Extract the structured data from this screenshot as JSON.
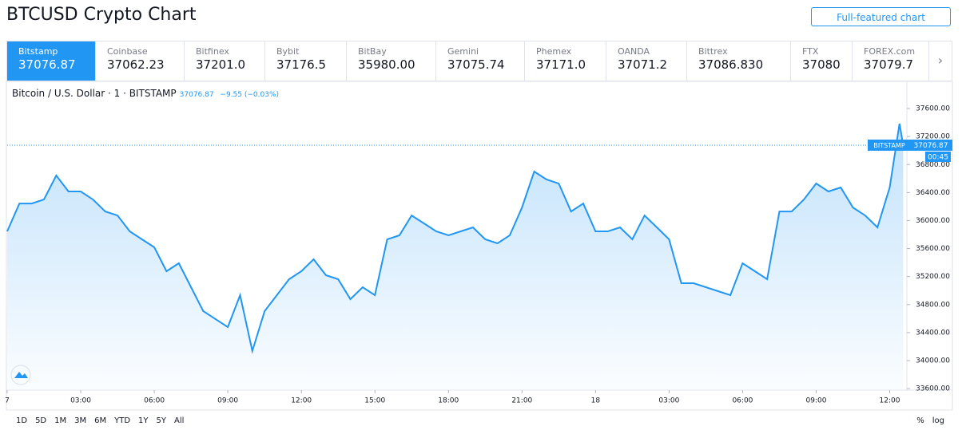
{
  "header": {
    "title": "BTCUSD Crypto Chart",
    "button": "Full-featured chart"
  },
  "tabs": [
    {
      "name": "Bitstamp",
      "price": "37076.87"
    },
    {
      "name": "Coinbase",
      "price": "37062.23"
    },
    {
      "name": "Bitfinex",
      "price": "37201.0"
    },
    {
      "name": "Bybit",
      "price": "37176.5"
    },
    {
      "name": "BitBay",
      "price": "35980.00"
    },
    {
      "name": "Gemini",
      "price": "37075.74"
    },
    {
      "name": "Phemex",
      "price": "37171.0"
    },
    {
      "name": "OANDA",
      "price": "37071.2"
    },
    {
      "name": "Bittrex",
      "price": "37086.830"
    },
    {
      "name": "FTX",
      "price": "37080"
    },
    {
      "name": "FOREX.com",
      "price": "37079.7"
    }
  ],
  "legend": {
    "symbol": "Bitcoin / U.S. Dollar · 1 · BITSTAMP",
    "quote": "37076.87",
    "change": "−9.55 (−0.03%)"
  },
  "ranges": [
    "1D",
    "5D",
    "1M",
    "3M",
    "6M",
    "YTD",
    "1Y",
    "5Y",
    "All"
  ],
  "scale_options": [
    "%",
    "log"
  ],
  "chart_data": {
    "type": "line",
    "x": [
      0,
      0.5,
      1,
      1.5,
      2,
      2.5,
      3,
      3.5,
      4,
      4.5,
      5,
      5.5,
      6,
      6.5,
      7,
      7.5,
      8,
      8.5,
      9,
      9.5,
      10,
      10.5,
      11,
      11.5,
      12,
      12.5,
      13,
      13.5,
      14,
      14.5,
      15,
      15.5,
      16,
      16.5,
      17,
      17.5,
      18,
      18.5,
      19,
      19.5,
      20,
      20.5,
      21,
      21.5,
      22,
      22.5,
      23,
      23.5,
      24,
      24.5,
      25,
      25.5,
      26,
      26.5,
      27,
      27.5,
      28,
      28.5,
      29,
      29.5,
      30,
      30.5,
      31,
      31.5,
      32,
      32.5,
      33,
      33.5,
      34,
      34.5,
      35,
      35.5,
      36,
      36.4,
      36.55
    ],
    "series": [
      {
        "name": "BITSTAMP",
        "color": "#2196f3",
        "values": [
          35846,
          36244,
          36244,
          36301,
          36643,
          36415,
          36415,
          36301,
          36130,
          36073,
          35846,
          35732,
          35618,
          35276,
          35390,
          35048,
          34706,
          34592,
          34479,
          34934,
          34137,
          34706,
          34934,
          35162,
          35276,
          35447,
          35219,
          35162,
          34877,
          35048,
          34934,
          35732,
          35789,
          36073,
          35960,
          35846,
          35789,
          35846,
          35903,
          35732,
          35675,
          35789,
          36187,
          36700,
          36586,
          36529,
          36130,
          36244,
          35846,
          35846,
          35903,
          35732,
          36073,
          35903,
          35732,
          35105,
          35105,
          35048,
          34991,
          34934,
          35390,
          35276,
          35162,
          36130,
          36130,
          36301,
          36529,
          36415,
          36472,
          36187,
          36073,
          35903,
          36472,
          37384,
          37077
        ]
      }
    ],
    "xlim": [
      0,
      36.7
    ],
    "xticks": [
      {
        "value": 0,
        "label": "7"
      },
      {
        "value": 3,
        "label": "03:00"
      },
      {
        "value": 6,
        "label": "06:00"
      },
      {
        "value": 9,
        "label": "09:00"
      },
      {
        "value": 12,
        "label": "12:00"
      },
      {
        "value": 15,
        "label": "15:00"
      },
      {
        "value": 18,
        "label": "18:00"
      },
      {
        "value": 21,
        "label": "21:00"
      },
      {
        "value": 24,
        "label": "18"
      },
      {
        "value": 27,
        "label": "03:00"
      },
      {
        "value": 30,
        "label": "06:00"
      },
      {
        "value": 33,
        "label": "09:00"
      },
      {
        "value": 36,
        "label": "12:00"
      }
    ],
    "ylim": [
      33590,
      37965
    ],
    "yticks": [
      {
        "value": 33600,
        "label": "33600.00"
      },
      {
        "value": 34000,
        "label": "34000.00"
      },
      {
        "value": 34400,
        "label": "34400.00"
      },
      {
        "value": 34800,
        "label": "34800.00"
      },
      {
        "value": 35200,
        "label": "35200.00"
      },
      {
        "value": 35600,
        "label": "35600.00"
      },
      {
        "value": 36000,
        "label": "36000.00"
      },
      {
        "value": 36400,
        "label": "36400.00"
      },
      {
        "value": 36800,
        "label": "36800.00"
      },
      {
        "value": 37200,
        "label": "37200.00"
      },
      {
        "value": 37600,
        "label": "37600.00"
      }
    ],
    "grid": false,
    "price_tag": {
      "name": "BITSTAMP",
      "value": 37076.87,
      "time": "00:45"
    }
  }
}
